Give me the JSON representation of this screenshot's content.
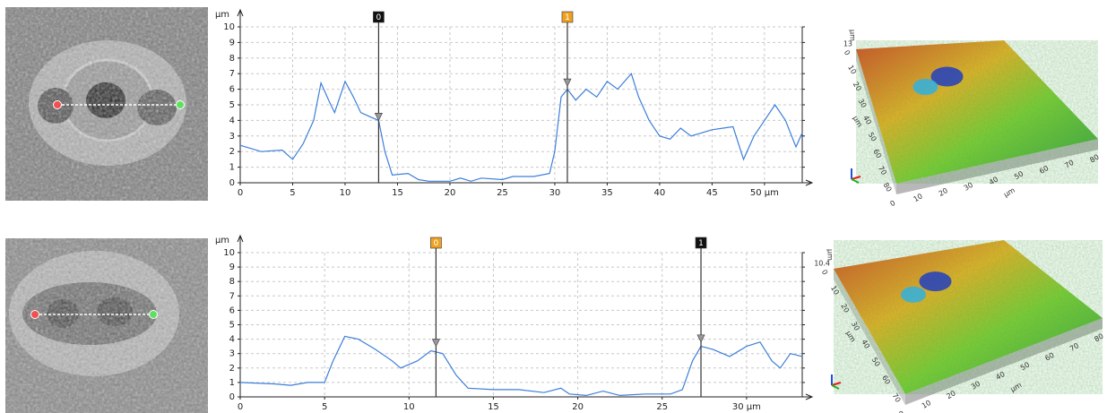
{
  "chart_data": [
    {
      "type": "line",
      "y_label": "µm",
      "x": [
        0,
        2,
        4,
        5,
        6,
        7,
        7.7,
        8.5,
        9,
        10,
        10.8,
        11.5,
        12.5,
        13.2,
        13.8,
        14.5,
        16,
        17,
        18,
        20,
        21,
        22,
        23,
        25,
        26,
        28,
        29.5,
        30,
        30.6,
        31.2,
        32,
        33,
        34,
        35,
        36,
        37.3,
        38,
        39,
        40,
        41,
        42,
        43,
        45,
        46,
        47,
        48,
        49,
        50,
        51,
        52,
        53,
        53.6
      ],
      "values": [
        2.4,
        2.0,
        2.1,
        1.5,
        2.5,
        4.0,
        6.4,
        5.2,
        4.5,
        6.5,
        5.5,
        4.5,
        4.2,
        4.0,
        2.0,
        0.5,
        0.6,
        0.2,
        0.1,
        0.1,
        0.3,
        0.1,
        0.3,
        0.2,
        0.4,
        0.4,
        0.6,
        2.0,
        5.5,
        6.0,
        5.3,
        6.0,
        5.5,
        6.5,
        6.0,
        7.0,
        5.5,
        4.0,
        3.0,
        2.8,
        3.5,
        3.0,
        3.4,
        3.5,
        3.6,
        1.5,
        3.0,
        4.0,
        5.0,
        4.0,
        2.3,
        3.2
      ],
      "color": "#3d7fd9",
      "xlim": [
        0,
        53.6
      ],
      "ylim": [
        0,
        10
      ],
      "xticks": [
        0,
        5,
        10,
        15,
        20,
        25,
        30,
        35,
        40,
        45,
        {
          "value": 50,
          "label": "50 µm"
        }
      ],
      "yticks": [
        0,
        1,
        2,
        3,
        4,
        5,
        6,
        7,
        8,
        9,
        10
      ],
      "grid": true,
      "markers": [
        {
          "label": "0",
          "x": 13.2,
          "y": 4.0,
          "color": "#111111"
        },
        {
          "label": "1",
          "x": 31.2,
          "y": 6.2,
          "color": "#f0a020"
        }
      ]
    },
    {
      "type": "line",
      "y_label": "µm",
      "x": [
        0,
        2,
        3,
        4,
        5,
        5.5,
        6.2,
        7,
        8,
        9,
        9.5,
        10.5,
        11.3,
        12,
        12.8,
        13.5,
        15,
        16.5,
        18,
        19,
        19.5,
        20.5,
        21.5,
        22.5,
        24,
        25.5,
        26.2,
        26.8,
        27.3,
        28,
        29,
        30,
        30.8,
        31.5,
        32,
        32.6,
        33.3
      ],
      "values": [
        1.0,
        0.9,
        0.8,
        1.0,
        1.0,
        2.5,
        4.2,
        4.0,
        3.3,
        2.5,
        2.0,
        2.5,
        3.2,
        3.0,
        1.5,
        0.6,
        0.5,
        0.5,
        0.3,
        0.6,
        0.2,
        0.1,
        0.4,
        0.1,
        0.2,
        0.2,
        0.5,
        2.5,
        3.5,
        3.3,
        2.8,
        3.5,
        3.8,
        2.5,
        2.0,
        3.0,
        2.8
      ],
      "color": "#3d7fd9",
      "xlim": [
        0,
        33.3
      ],
      "ylim": [
        0,
        10
      ],
      "xticks": [
        0,
        5,
        10,
        15,
        20,
        25,
        {
          "value": 30,
          "label": "30 µm"
        }
      ],
      "yticks": [
        0,
        1,
        2,
        3,
        4,
        5,
        6,
        7,
        8,
        9,
        10
      ],
      "grid": true,
      "markers": [
        {
          "label": "0",
          "x": 11.6,
          "y": 3.5,
          "color": "#f0a020"
        },
        {
          "label": "1",
          "x": 27.3,
          "y": 3.8,
          "color": "#111111"
        }
      ]
    }
  ],
  "surfaces": [
    {
      "unit": "µm",
      "z_max": "13",
      "x_ticks": [
        "0",
        "10",
        "20",
        "30",
        "40",
        "50",
        "60",
        "70",
        "80"
      ],
      "y_ticks": [
        "0",
        "10",
        "20",
        "30",
        "40",
        "50",
        "60",
        "70",
        "80"
      ]
    },
    {
      "unit": "µm",
      "z_max": "10.4",
      "x_ticks": [
        "0",
        "10",
        "20",
        "30",
        "40",
        "50",
        "60",
        "70",
        "80"
      ],
      "y_ticks": [
        "0",
        "10",
        "20",
        "30",
        "40",
        "50",
        "60",
        "70"
      ]
    }
  ]
}
